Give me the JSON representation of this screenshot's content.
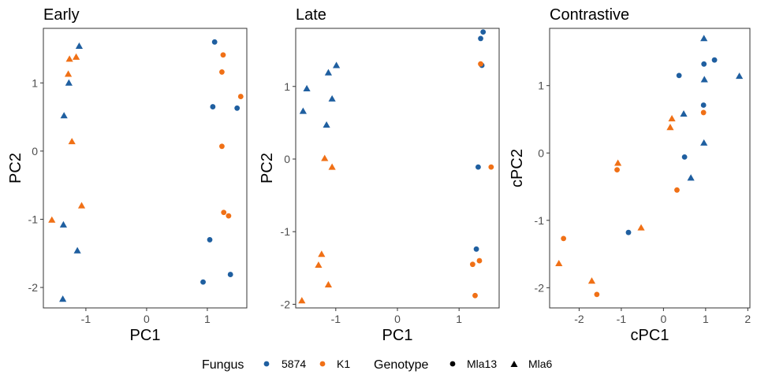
{
  "chart_data": [
    {
      "type": "scatter",
      "title": "Early",
      "xlabel": "PC1",
      "ylabel": "PC2",
      "xlim": [
        -1.7,
        1.65
      ],
      "ylim": [
        -2.3,
        1.8
      ],
      "xticks": [
        -1,
        0,
        1
      ],
      "yticks": [
        -2,
        -1,
        0,
        1
      ],
      "xtick_labels": [
        "-1",
        "0",
        "1"
      ],
      "ytick_labels": [
        "-2",
        "-1",
        "0",
        "1"
      ],
      "points": [
        {
          "x": -1.11,
          "y": 1.54,
          "fungus": "5874",
          "genotype": "Mla6"
        },
        {
          "x": -1.28,
          "y": 1.0,
          "fungus": "5874",
          "genotype": "Mla6"
        },
        {
          "x": -1.36,
          "y": 0.52,
          "fungus": "5874",
          "genotype": "Mla6"
        },
        {
          "x": -1.37,
          "y": -1.08,
          "fungus": "5874",
          "genotype": "Mla6"
        },
        {
          "x": -1.14,
          "y": -1.46,
          "fungus": "5874",
          "genotype": "Mla6"
        },
        {
          "x": -1.38,
          "y": -2.17,
          "fungus": "5874",
          "genotype": "Mla6"
        },
        {
          "x": -1.27,
          "y": 1.35,
          "fungus": "K1",
          "genotype": "Mla6"
        },
        {
          "x": -1.16,
          "y": 1.38,
          "fungus": "K1",
          "genotype": "Mla6"
        },
        {
          "x": -1.29,
          "y": 1.13,
          "fungus": "K1",
          "genotype": "Mla6"
        },
        {
          "x": -1.23,
          "y": 0.14,
          "fungus": "K1",
          "genotype": "Mla6"
        },
        {
          "x": -1.07,
          "y": -0.8,
          "fungus": "K1",
          "genotype": "Mla6"
        },
        {
          "x": -1.56,
          "y": -1.01,
          "fungus": "K1",
          "genotype": "Mla6"
        },
        {
          "x": 1.12,
          "y": 1.6,
          "fungus": "5874",
          "genotype": "Mla13"
        },
        {
          "x": 1.09,
          "y": 0.65,
          "fungus": "5874",
          "genotype": "Mla13"
        },
        {
          "x": 1.49,
          "y": 0.63,
          "fungus": "5874",
          "genotype": "Mla13"
        },
        {
          "x": 1.04,
          "y": -1.3,
          "fungus": "5874",
          "genotype": "Mla13"
        },
        {
          "x": 0.93,
          "y": -1.92,
          "fungus": "5874",
          "genotype": "Mla13"
        },
        {
          "x": 1.38,
          "y": -1.81,
          "fungus": "5874",
          "genotype": "Mla13"
        },
        {
          "x": 1.26,
          "y": 1.41,
          "fungus": "K1",
          "genotype": "Mla13"
        },
        {
          "x": 1.24,
          "y": 1.16,
          "fungus": "K1",
          "genotype": "Mla13"
        },
        {
          "x": 1.55,
          "y": 0.8,
          "fungus": "K1",
          "genotype": "Mla13"
        },
        {
          "x": 1.24,
          "y": 0.07,
          "fungus": "K1",
          "genotype": "Mla13"
        },
        {
          "x": 1.27,
          "y": -0.9,
          "fungus": "K1",
          "genotype": "Mla13"
        },
        {
          "x": 1.35,
          "y": -0.95,
          "fungus": "K1",
          "genotype": "Mla13"
        }
      ]
    },
    {
      "type": "scatter",
      "title": "Late",
      "xlabel": "PC1",
      "ylabel": "PC2",
      "xlim": [
        -1.65,
        1.65
      ],
      "ylim": [
        -2.05,
        1.8
      ],
      "xticks": [
        -1,
        0,
        1
      ],
      "yticks": [
        -2,
        -1,
        0,
        1
      ],
      "xtick_labels": [
        "-1",
        "0",
        "1"
      ],
      "ytick_labels": [
        "-2",
        "-1",
        "0",
        "1"
      ],
      "points": [
        {
          "x": -1.47,
          "y": 0.97,
          "fungus": "5874",
          "genotype": "Mla6"
        },
        {
          "x": -1.53,
          "y": 0.66,
          "fungus": "5874",
          "genotype": "Mla6"
        },
        {
          "x": -1.12,
          "y": 1.19,
          "fungus": "5874",
          "genotype": "Mla6"
        },
        {
          "x": -0.99,
          "y": 1.29,
          "fungus": "5874",
          "genotype": "Mla6"
        },
        {
          "x": -1.06,
          "y": 0.83,
          "fungus": "5874",
          "genotype": "Mla6"
        },
        {
          "x": -1.15,
          "y": 0.47,
          "fungus": "5874",
          "genotype": "Mla6"
        },
        {
          "x": -1.18,
          "y": 0.01,
          "fungus": "K1",
          "genotype": "Mla6"
        },
        {
          "x": -1.06,
          "y": -0.11,
          "fungus": "K1",
          "genotype": "Mla6"
        },
        {
          "x": -1.23,
          "y": -1.31,
          "fungus": "K1",
          "genotype": "Mla6"
        },
        {
          "x": -1.28,
          "y": -1.46,
          "fungus": "K1",
          "genotype": "Mla6"
        },
        {
          "x": -1.12,
          "y": -1.73,
          "fungus": "K1",
          "genotype": "Mla6"
        },
        {
          "x": -1.55,
          "y": -1.95,
          "fungus": "K1",
          "genotype": "Mla6"
        },
        {
          "x": 1.39,
          "y": 1.75,
          "fungus": "5874",
          "genotype": "Mla13"
        },
        {
          "x": 1.35,
          "y": 1.66,
          "fungus": "5874",
          "genotype": "Mla13"
        },
        {
          "x": 1.37,
          "y": 1.29,
          "fungus": "5874",
          "genotype": "Mla13"
        },
        {
          "x": 1.31,
          "y": -0.11,
          "fungus": "5874",
          "genotype": "Mla13"
        },
        {
          "x": 1.28,
          "y": -1.24,
          "fungus": "5874",
          "genotype": "Mla13"
        },
        {
          "x": 1.35,
          "y": 1.31,
          "fungus": "K1",
          "genotype": "Mla13"
        },
        {
          "x": 1.52,
          "y": -0.11,
          "fungus": "K1",
          "genotype": "Mla13"
        },
        {
          "x": 1.33,
          "y": -1.4,
          "fungus": "K1",
          "genotype": "Mla13"
        },
        {
          "x": 1.22,
          "y": -1.45,
          "fungus": "K1",
          "genotype": "Mla13"
        },
        {
          "x": 1.26,
          "y": -1.88,
          "fungus": "K1",
          "genotype": "Mla13"
        }
      ]
    },
    {
      "type": "scatter",
      "title": "Contrastive",
      "xlabel": "cPC1",
      "ylabel": "cPC2",
      "xlim": [
        -2.7,
        2.05
      ],
      "ylim": [
        -2.3,
        1.85
      ],
      "xticks": [
        -2,
        -1,
        0,
        1,
        2
      ],
      "yticks": [
        -2,
        -1,
        0,
        1
      ],
      "xtick_labels": [
        "-2",
        "-1",
        "0",
        "1",
        "2"
      ],
      "ytick_labels": [
        "-2",
        "-1",
        "0",
        "1"
      ],
      "points": [
        {
          "x": 0.96,
          "y": 1.7,
          "fungus": "5874",
          "genotype": "Mla6"
        },
        {
          "x": 1.8,
          "y": 1.14,
          "fungus": "5874",
          "genotype": "Mla6"
        },
        {
          "x": 0.97,
          "y": 1.09,
          "fungus": "5874",
          "genotype": "Mla6"
        },
        {
          "x": 0.48,
          "y": 0.58,
          "fungus": "5874",
          "genotype": "Mla6"
        },
        {
          "x": 0.96,
          "y": 0.15,
          "fungus": "5874",
          "genotype": "Mla6"
        },
        {
          "x": 0.65,
          "y": -0.37,
          "fungus": "5874",
          "genotype": "Mla6"
        },
        {
          "x": 0.2,
          "y": 0.51,
          "fungus": "K1",
          "genotype": "Mla6"
        },
        {
          "x": 0.16,
          "y": 0.38,
          "fungus": "K1",
          "genotype": "Mla6"
        },
        {
          "x": -1.08,
          "y": -0.15,
          "fungus": "K1",
          "genotype": "Mla6"
        },
        {
          "x": -0.53,
          "y": -1.11,
          "fungus": "K1",
          "genotype": "Mla6"
        },
        {
          "x": -1.7,
          "y": -1.9,
          "fungus": "K1",
          "genotype": "Mla6"
        },
        {
          "x": -2.48,
          "y": -1.64,
          "fungus": "K1",
          "genotype": "Mla6"
        },
        {
          "x": 0.96,
          "y": 1.32,
          "fungus": "5874",
          "genotype": "Mla13"
        },
        {
          "x": 1.21,
          "y": 1.38,
          "fungus": "5874",
          "genotype": "Mla13"
        },
        {
          "x": 0.37,
          "y": 1.15,
          "fungus": "5874",
          "genotype": "Mla13"
        },
        {
          "x": 0.95,
          "y": 0.71,
          "fungus": "5874",
          "genotype": "Mla13"
        },
        {
          "x": 0.5,
          "y": -0.06,
          "fungus": "5874",
          "genotype": "Mla13"
        },
        {
          "x": -0.83,
          "y": -1.18,
          "fungus": "5874",
          "genotype": "Mla13"
        },
        {
          "x": 0.95,
          "y": 0.6,
          "fungus": "K1",
          "genotype": "Mla13"
        },
        {
          "x": -1.1,
          "y": -0.25,
          "fungus": "K1",
          "genotype": "Mla13"
        },
        {
          "x": 0.32,
          "y": -0.55,
          "fungus": "K1",
          "genotype": "Mla13"
        },
        {
          "x": -2.37,
          "y": -1.27,
          "fungus": "K1",
          "genotype": "Mla13"
        },
        {
          "x": -1.58,
          "y": -2.1,
          "fungus": "K1",
          "genotype": "Mla13"
        }
      ]
    }
  ],
  "legend": {
    "fungus_title": "Fungus",
    "fungus_items": [
      {
        "label": "5874",
        "color": "#1f5fa0"
      },
      {
        "label": "K1",
        "color": "#f07016"
      }
    ],
    "genotype_title": "Genotype",
    "genotype_items": [
      {
        "label": "Mla13",
        "shape": "circle"
      },
      {
        "label": "Mla6",
        "shape": "triangle"
      }
    ]
  }
}
